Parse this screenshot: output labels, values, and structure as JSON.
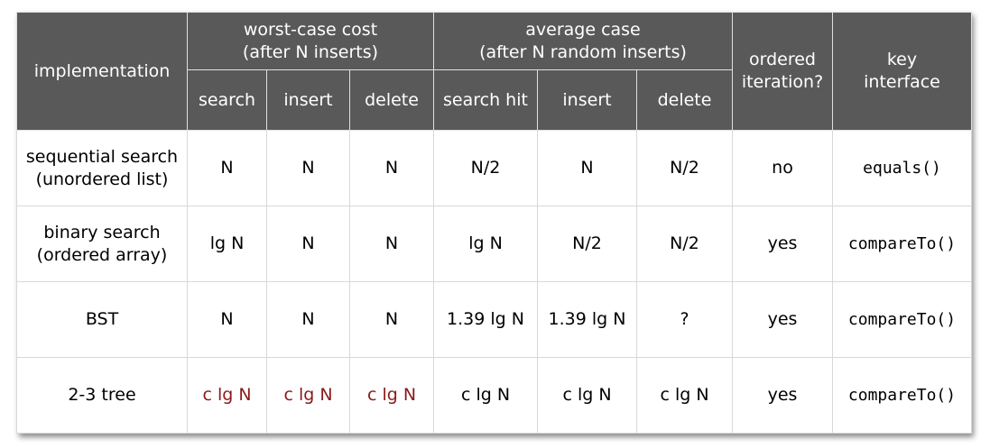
{
  "header": {
    "implementation": "implementation",
    "worst_case": {
      "line1": "worst-case cost",
      "line2": "(after N inserts)"
    },
    "average_case": {
      "line1": "average case",
      "line2": "(after N random inserts)"
    },
    "ordered": {
      "line1": "ordered",
      "line2": "iteration?"
    },
    "key": {
      "line1": "key",
      "line2": "interface"
    },
    "sub": [
      "search",
      "insert",
      "delete",
      "search hit",
      "insert",
      "delete"
    ]
  },
  "rows": [
    {
      "impl1": "sequential search",
      "impl2": "(unordered list)",
      "cells": [
        "N",
        "N",
        "N",
        "N/2",
        "N",
        "N/2"
      ],
      "ordered": "no",
      "key": "equals()"
    },
    {
      "impl1": "binary search",
      "impl2": "(ordered array)",
      "cells": [
        "lg N",
        "N",
        "N",
        "lg N",
        "N/2",
        "N/2"
      ],
      "ordered": "yes",
      "key": "compareTo()"
    },
    {
      "impl1": "BST",
      "impl2": "",
      "cells": [
        "N",
        "N",
        "N",
        "1.39 lg N",
        "1.39 lg N",
        "?"
      ],
      "ordered": "yes",
      "key": "compareTo()"
    },
    {
      "impl1": "2-3 tree",
      "impl2": "",
      "cells": [
        "c lg N",
        "c lg N",
        "c lg N",
        "c lg N",
        "c lg N",
        "c lg N"
      ],
      "ordered": "yes",
      "key": "compareTo()"
    }
  ],
  "colors": {
    "header_bg": "#595959",
    "highlight": "#8b1a1a"
  }
}
